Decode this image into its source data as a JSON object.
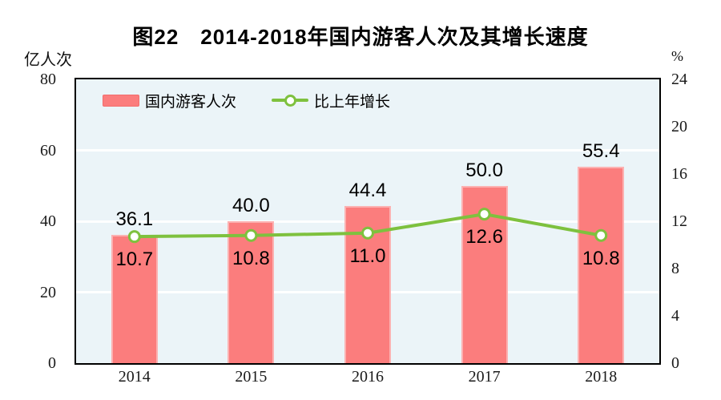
{
  "title": "图22　2014-2018年国内游客人次及其增长速度",
  "left_axis": {
    "unit": "亿人次",
    "ticks": [
      "80",
      "60",
      "40",
      "20",
      "0"
    ],
    "values": [
      80,
      60,
      40,
      20,
      0
    ],
    "max": 80
  },
  "right_axis": {
    "unit": "%",
    "ticks": [
      "24",
      "20",
      "16",
      "12",
      "8",
      "4",
      "0"
    ],
    "values": [
      24,
      20,
      16,
      12,
      8,
      4,
      0
    ],
    "max": 24
  },
  "chart_data": {
    "type": "bar+line",
    "title": "图22　2014-2018年国内游客人次及其增长速度",
    "categories": [
      "2014",
      "2015",
      "2016",
      "2017",
      "2018"
    ],
    "series": [
      {
        "name": "国内游客人次",
        "type": "bar",
        "axis": "left",
        "unit": "亿人次",
        "values": [
          36.1,
          40.0,
          44.4,
          50.0,
          55.4
        ],
        "labels": [
          "36.1",
          "40.0",
          "44.4",
          "50.0",
          "55.4"
        ]
      },
      {
        "name": "比上年增长",
        "type": "line",
        "axis": "right",
        "unit": "%",
        "values": [
          10.7,
          10.8,
          11.0,
          12.6,
          10.8
        ],
        "labels": [
          "10.7",
          "10.8",
          "11.0",
          "12.6",
          "10.8"
        ]
      }
    ],
    "ylim_left": [
      0,
      80
    ],
    "ylim_right": [
      0,
      24
    ],
    "gridline_values": [
      60,
      40,
      20
    ],
    "grid": true,
    "legend_position": "top-left"
  },
  "colors": {
    "bar": "#FB7D7D",
    "bar_edge": "#F26D6D",
    "line": "#7EC13E",
    "marker_fill": "#FFFFFF",
    "plot_bg": "#EBF4F8",
    "gridline": "#FFFFFF",
    "plot_border": "#000000",
    "text": "#000000"
  }
}
